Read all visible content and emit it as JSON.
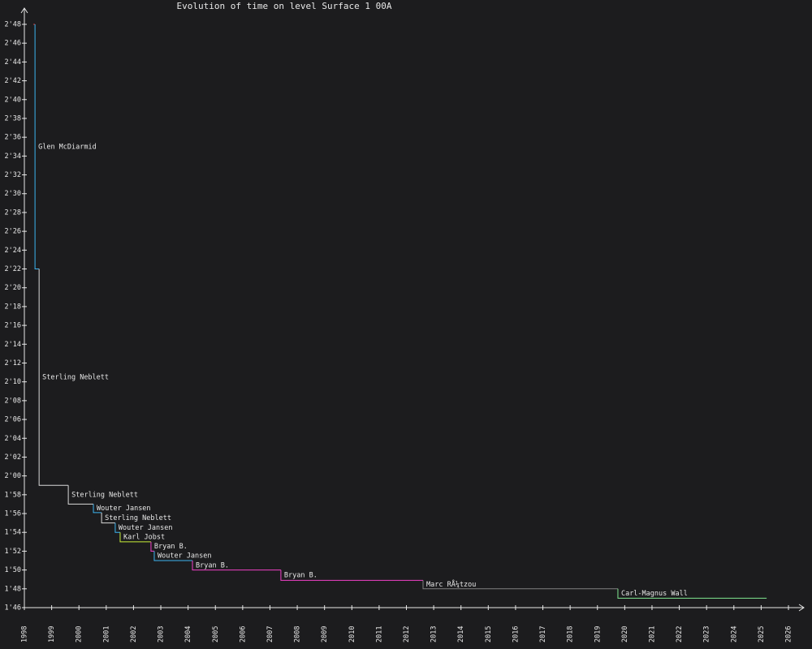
{
  "chart_data": {
    "type": "step",
    "title": "Evolution of time on level Surface 1 00A",
    "x": [
      1998.33,
      1998.39,
      1998.54,
      1999.61,
      2000.53,
      2000.83,
      2001.33,
      2001.51,
      2002.64,
      2002.76,
      2004.16,
      2007.4,
      2012.61,
      2019.75
    ],
    "x_end": 2025.2,
    "values": [
      168,
      142,
      119,
      117,
      116.1,
      115,
      114,
      113,
      112,
      111,
      110,
      108.9,
      108,
      107
    ],
    "labels": [
      null,
      "Glen McDiarmid",
      "Sterling Neblett",
      "Sterling Neblett",
      "Wouter Jansen",
      "Sterling Neblett",
      "Wouter Jansen",
      "Karl Jobst",
      "Bryan B.",
      "Wouter Jansen",
      "Bryan B.",
      "Bryan B.",
      "Marc RÅ¼tzou",
      "Carl-Magnus Wall"
    ],
    "colors": [
      "#e04848",
      "#3cb4f0",
      "#d8d8d8",
      "#d8d8d8",
      "#3cb4f0",
      "#d8d8d8",
      "#3cb4f0",
      "#c8f038",
      "#f040c8",
      "#3cb4f0",
      "#f040c8",
      "#f040c8",
      "#808080",
      "#80e890"
    ],
    "xlim": [
      1998,
      2026
    ],
    "xticks": [
      1998,
      1999,
      2000,
      2001,
      2002,
      2003,
      2004,
      2005,
      2006,
      2007,
      2008,
      2009,
      2010,
      2011,
      2012,
      2013,
      2014,
      2015,
      2016,
      2017,
      2018,
      2019,
      2020,
      2021,
      2022,
      2023,
      2024,
      2025,
      2026
    ],
    "ylim": [
      106,
      168
    ],
    "yticks": [
      {
        "value": 106,
        "label": "1'46"
      },
      {
        "value": 108,
        "label": "1'48"
      },
      {
        "value": 110,
        "label": "1'50"
      },
      {
        "value": 112,
        "label": "1'52"
      },
      {
        "value": 114,
        "label": "1'54"
      },
      {
        "value": 116,
        "label": "1'56"
      },
      {
        "value": 118,
        "label": "1'58"
      },
      {
        "value": 120,
        "label": "2'00"
      },
      {
        "value": 122,
        "label": "2'02"
      },
      {
        "value": 124,
        "label": "2'04"
      },
      {
        "value": 126,
        "label": "2'06"
      },
      {
        "value": 128,
        "label": "2'08"
      },
      {
        "value": 130,
        "label": "2'10"
      },
      {
        "value": 132,
        "label": "2'12"
      },
      {
        "value": 134,
        "label": "2'14"
      },
      {
        "value": 136,
        "label": "2'16"
      },
      {
        "value": 138,
        "label": "2'18"
      },
      {
        "value": 140,
        "label": "2'20"
      },
      {
        "value": 142,
        "label": "2'22"
      },
      {
        "value": 144,
        "label": "2'24"
      },
      {
        "value": 146,
        "label": "2'26"
      },
      {
        "value": 148,
        "label": "2'28"
      },
      {
        "value": 150,
        "label": "2'30"
      },
      {
        "value": 152,
        "label": "2'32"
      },
      {
        "value": 154,
        "label": "2'34"
      },
      {
        "value": 156,
        "label": "2'36"
      },
      {
        "value": 158,
        "label": "2'38"
      },
      {
        "value": 160,
        "label": "2'40"
      },
      {
        "value": 162,
        "label": "2'42"
      },
      {
        "value": 164,
        "label": "2'44"
      },
      {
        "value": 166,
        "label": "2'46"
      },
      {
        "value": 168,
        "label": "2'48"
      }
    ]
  }
}
